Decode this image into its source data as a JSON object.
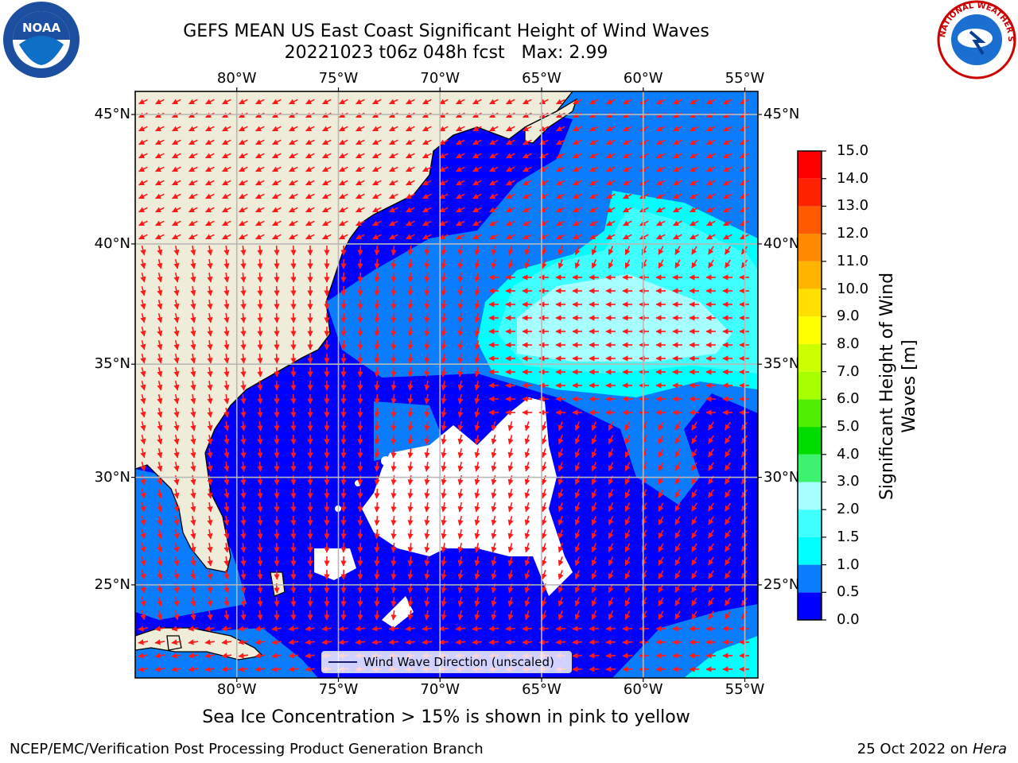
{
  "title_line1": "GEFS MEAN US East Coast Significant Height of Wind Waves",
  "title_line2": "20221023 t06z 048h fcst   Max: 2.99",
  "subcaption": "Sea Ice Concentration > 15% is shown in pink to yellow",
  "footer_left": "NCEP/EMC/Verification Post Processing Product Generation Branch",
  "footer_right_date": "25 Oct 2022 on",
  "footer_right_host": "Hera",
  "legend_label": "Wind Wave Direction (unscaled)",
  "logos": {
    "noaa_text": "NOAA",
    "nws_ring_text": "NATIONAL WEATHER SERVICE"
  },
  "map": {
    "lon_labels": [
      "80°W",
      "75°W",
      "70°W",
      "65°W",
      "60°W",
      "55°W"
    ],
    "lat_labels": [
      "45°N",
      "40°N",
      "35°N",
      "30°N",
      "25°N"
    ],
    "lon_values": [
      -80,
      -75,
      -70,
      -65,
      -60,
      -55
    ],
    "lat_values": [
      45,
      40,
      35,
      30,
      25
    ],
    "colors": {
      "land": "#efedd9",
      "no_data": "#ffffff",
      "arrow": "#ff1a1a",
      "grid": "#b8b8b8"
    }
  },
  "colorbar": {
    "title": "Significant Height of Wind Waves [m]",
    "tick_labels": [
      "0.0",
      "0.5",
      "1.0",
      "1.5",
      "2.0",
      "3.0",
      "4.0",
      "5.0",
      "6.0",
      "7.0",
      "8.0",
      "9.0",
      "10.0",
      "11.0",
      "12.0",
      "13.0",
      "14.0",
      "15.0"
    ],
    "colors": [
      "#0000ff",
      "#0a7dff",
      "#00ffff",
      "#40ffff",
      "#a8ffff",
      "#3cf26e",
      "#00dd00",
      "#50ee00",
      "#a8ff00",
      "#ccff00",
      "#ffff00",
      "#ffe000",
      "#ffb400",
      "#ff8a00",
      "#ff5a00",
      "#ff2200",
      "#ff0000"
    ]
  }
}
